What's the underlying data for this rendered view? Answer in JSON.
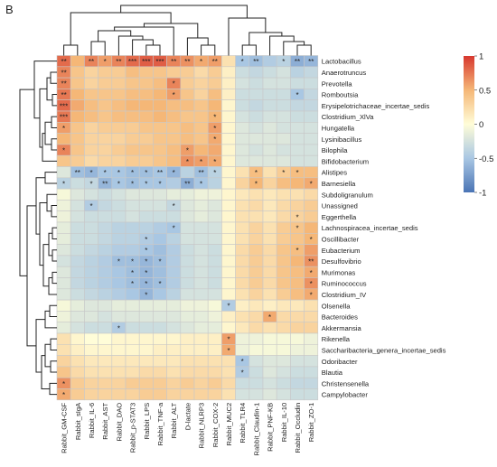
{
  "panel_label": "B",
  "chart_data": {
    "type": "heatmap",
    "title": "",
    "rows": [
      "Lactobacillus",
      "Anaerotruncus",
      "Prevotella",
      "Romboutsia",
      "Erysipelotrichaceae_incertae_sedis",
      "Clostridium_XlVa",
      "Hungatella",
      "Lysinibacillus",
      "Bilophila",
      "Bifidobacterium",
      "Alistipes",
      "Barnesiella",
      "Subdoligranulum",
      "Unassigned",
      "Eggerthella",
      "Lachnospiracea_incertae_sedis",
      "Oscillibacter",
      "Eubacterium",
      "Desulfovibrio",
      "Murimonas",
      "Ruminococcus",
      "Clostridium_IV",
      "Olsenella",
      "Bacteroides",
      "Akkermansia",
      "Rikenella",
      "Saccharibacteria_genera_incertae_sedis",
      "Odoribacter",
      "Blautia",
      "Christensenella",
      "Campylobacter"
    ],
    "columns": [
      "Rabbit_GM-CSF",
      "Rabbit_sIgA",
      "Rabbit_IL-6",
      "Rabbit_AST",
      "Rabbit_DAO",
      "Rabbit_p-STAT3",
      "Rabbit_LPS",
      "Rabbit_TNF-a",
      "Rabbit_ALT",
      "D-lactate",
      "Rabbit_NLRP3",
      "Rabbit_COX-2",
      "Rabbit_MUC2",
      "Rabbit_TLR4",
      "Rabbit_Claudin-1",
      "Rabbit_PNF-KB",
      "Rabbit_IL-10",
      "Rabbit_Occludin",
      "Rabbit_ZO-1"
    ],
    "values": [
      [
        0.8,
        0.5,
        0.7,
        0.6,
        0.7,
        0.8,
        0.85,
        0.85,
        0.7,
        0.65,
        0.55,
        0.6,
        0.2,
        -0.5,
        -0.55,
        -0.45,
        -0.4,
        -0.65,
        -0.6
      ],
      [
        0.7,
        0.4,
        0.3,
        0.35,
        0.35,
        0.45,
        0.4,
        0.4,
        0.35,
        0.35,
        0.25,
        0.35,
        0.1,
        -0.3,
        -0.35,
        -0.3,
        -0.25,
        -0.4,
        -0.35
      ],
      [
        0.7,
        0.4,
        0.3,
        0.35,
        0.35,
        0.4,
        0.4,
        0.45,
        0.7,
        0.35,
        0.3,
        0.35,
        0.1,
        -0.25,
        -0.3,
        -0.25,
        -0.25,
        -0.3,
        -0.3
      ],
      [
        0.75,
        0.5,
        0.4,
        0.4,
        0.4,
        0.45,
        0.45,
        0.5,
        0.6,
        0.4,
        0.3,
        0.45,
        0.1,
        -0.3,
        -0.3,
        -0.3,
        -0.3,
        -0.5,
        -0.35
      ],
      [
        0.8,
        0.55,
        0.45,
        0.4,
        0.45,
        0.5,
        0.5,
        0.5,
        0.45,
        0.45,
        0.4,
        0.5,
        0.05,
        -0.3,
        -0.35,
        -0.3,
        -0.3,
        -0.35,
        -0.35
      ],
      [
        0.75,
        0.5,
        0.45,
        0.4,
        0.45,
        0.45,
        0.45,
        0.5,
        0.45,
        0.4,
        0.4,
        0.5,
        0.05,
        -0.25,
        -0.3,
        -0.25,
        -0.25,
        -0.3,
        -0.3
      ],
      [
        0.6,
        0.4,
        0.3,
        0.35,
        0.35,
        0.35,
        0.4,
        0.4,
        0.4,
        0.45,
        0.4,
        0.6,
        0.05,
        -0.2,
        -0.25,
        -0.2,
        -0.25,
        -0.25,
        -0.25
      ],
      [
        0.5,
        0.4,
        0.3,
        0.3,
        0.3,
        0.35,
        0.35,
        0.4,
        0.4,
        0.45,
        0.4,
        0.55,
        0.05,
        -0.2,
        -0.2,
        -0.2,
        -0.2,
        -0.25,
        -0.25
      ],
      [
        0.7,
        0.4,
        0.3,
        0.3,
        0.35,
        0.4,
        0.4,
        0.4,
        0.45,
        0.6,
        0.5,
        0.55,
        0.05,
        -0.2,
        -0.25,
        -0.2,
        -0.25,
        -0.25,
        -0.25
      ],
      [
        0.4,
        0.35,
        0.25,
        0.3,
        0.3,
        0.35,
        0.35,
        0.4,
        0.45,
        0.65,
        0.6,
        0.55,
        0.05,
        -0.2,
        -0.2,
        -0.2,
        -0.2,
        -0.25,
        -0.25
      ],
      [
        -0.2,
        -0.55,
        -0.6,
        -0.5,
        -0.5,
        -0.55,
        -0.55,
        -0.5,
        -0.6,
        -0.4,
        -0.55,
        -0.4,
        0.05,
        0.2,
        0.45,
        0.2,
        0.35,
        0.45,
        0.45
      ],
      [
        -0.4,
        -0.3,
        -0.35,
        -0.6,
        -0.5,
        -0.55,
        -0.5,
        -0.5,
        -0.45,
        -0.65,
        -0.5,
        -0.4,
        0.05,
        0.3,
        0.5,
        0.3,
        0.45,
        0.5,
        0.55
      ],
      [
        -0.05,
        -0.2,
        -0.25,
        -0.3,
        -0.25,
        -0.2,
        -0.2,
        -0.2,
        -0.15,
        -0.15,
        -0.1,
        -0.1,
        0.05,
        0.15,
        0.2,
        0.15,
        0.2,
        0.2,
        0.25
      ],
      [
        -0.1,
        -0.25,
        -0.45,
        -0.35,
        -0.3,
        -0.25,
        -0.25,
        -0.25,
        -0.35,
        -0.2,
        -0.15,
        -0.2,
        0.05,
        0.2,
        0.25,
        0.15,
        0.25,
        0.3,
        0.35
      ],
      [
        -0.1,
        -0.25,
        -0.3,
        -0.3,
        -0.3,
        -0.25,
        -0.3,
        -0.3,
        -0.3,
        -0.2,
        -0.15,
        -0.2,
        0.05,
        0.2,
        0.2,
        0.15,
        0.25,
        0.3,
        0.35
      ],
      [
        -0.15,
        -0.3,
        -0.3,
        -0.35,
        -0.4,
        -0.4,
        -0.4,
        -0.45,
        -0.5,
        -0.25,
        -0.25,
        -0.25,
        0.05,
        0.2,
        0.3,
        0.2,
        0.35,
        0.4,
        0.5
      ],
      [
        -0.15,
        -0.3,
        -0.3,
        -0.35,
        -0.4,
        -0.4,
        -0.45,
        -0.5,
        -0.4,
        -0.25,
        -0.25,
        -0.25,
        0.05,
        0.2,
        0.3,
        0.2,
        0.35,
        0.4,
        0.5
      ],
      [
        -0.2,
        -0.3,
        -0.35,
        -0.4,
        -0.45,
        -0.45,
        -0.5,
        -0.55,
        -0.45,
        -0.3,
        -0.25,
        -0.3,
        0.05,
        0.25,
        0.35,
        0.25,
        0.4,
        0.45,
        0.6
      ],
      [
        -0.25,
        -0.35,
        -0.4,
        -0.45,
        -0.55,
        -0.55,
        -0.6,
        -0.55,
        -0.45,
        -0.3,
        -0.25,
        -0.3,
        0.05,
        0.25,
        0.35,
        0.25,
        0.4,
        0.5,
        0.65
      ],
      [
        -0.2,
        -0.35,
        -0.4,
        -0.45,
        -0.5,
        -0.55,
        -0.6,
        -0.55,
        -0.45,
        -0.3,
        -0.25,
        -0.3,
        0.05,
        0.25,
        0.35,
        0.25,
        0.4,
        0.45,
        0.55
      ],
      [
        -0.2,
        -0.35,
        -0.4,
        -0.45,
        -0.5,
        -0.55,
        -0.6,
        -0.55,
        -0.45,
        -0.3,
        -0.25,
        -0.3,
        0.05,
        0.25,
        0.35,
        0.25,
        0.4,
        0.45,
        0.65
      ],
      [
        -0.2,
        -0.3,
        -0.35,
        -0.4,
        -0.45,
        -0.5,
        -0.6,
        -0.5,
        -0.4,
        -0.25,
        -0.25,
        -0.25,
        0.05,
        0.2,
        0.3,
        0.2,
        0.35,
        0.45,
        0.55
      ],
      [
        -0.05,
        -0.15,
        -0.2,
        -0.2,
        -0.15,
        -0.15,
        -0.15,
        -0.15,
        -0.15,
        -0.1,
        -0.1,
        -0.05,
        -0.45,
        0.1,
        0.15,
        0.1,
        0.15,
        0.15,
        0.2
      ],
      [
        -0.1,
        -0.2,
        -0.2,
        -0.25,
        -0.2,
        -0.2,
        -0.2,
        -0.2,
        -0.2,
        -0.15,
        -0.15,
        -0.1,
        0.1,
        0.2,
        0.25,
        0.55,
        0.25,
        0.25,
        0.25
      ],
      [
        -0.15,
        -0.25,
        -0.3,
        -0.3,
        -0.45,
        -0.3,
        -0.3,
        -0.3,
        -0.25,
        -0.2,
        -0.15,
        -0.15,
        0.05,
        0.15,
        0.25,
        0.2,
        0.25,
        0.3,
        0.3
      ],
      [
        0.2,
        0.05,
        0.0,
        0.0,
        0.05,
        0.05,
        0.05,
        0.05,
        0.05,
        0.1,
        0.1,
        0.1,
        0.6,
        -0.1,
        -0.1,
        -0.05,
        -0.05,
        -0.05,
        -0.1
      ],
      [
        0.2,
        0.1,
        0.05,
        0.05,
        0.05,
        0.05,
        0.05,
        0.1,
        0.1,
        0.1,
        0.1,
        0.1,
        0.55,
        -0.1,
        -0.05,
        -0.05,
        -0.05,
        -0.1,
        -0.1
      ],
      [
        0.3,
        0.2,
        0.15,
        0.15,
        0.15,
        0.15,
        0.15,
        0.15,
        0.15,
        0.2,
        0.2,
        0.2,
        0.2,
        -0.5,
        -0.25,
        -0.2,
        -0.2,
        -0.25,
        -0.25
      ],
      [
        0.4,
        0.25,
        0.2,
        0.2,
        0.2,
        0.2,
        0.25,
        0.25,
        0.2,
        0.25,
        0.25,
        0.25,
        0.2,
        -0.45,
        -0.3,
        -0.2,
        -0.25,
        -0.3,
        -0.3
      ],
      [
        0.65,
        0.35,
        0.3,
        0.3,
        0.3,
        0.35,
        0.35,
        0.35,
        0.3,
        0.35,
        0.3,
        0.35,
        0.25,
        -0.3,
        -0.3,
        -0.25,
        -0.3,
        -0.35,
        -0.35
      ],
      [
        0.55,
        0.35,
        0.3,
        0.3,
        0.3,
        0.3,
        0.35,
        0.35,
        0.3,
        0.3,
        0.3,
        0.3,
        0.2,
        -0.25,
        -0.25,
        -0.2,
        -0.25,
        -0.3,
        -0.3
      ]
    ],
    "stars": [
      [
        "**",
        "",
        "**",
        "*",
        "**",
        "***",
        "***",
        "***",
        "**",
        "**",
        "*",
        "**",
        "",
        "*",
        "**",
        "",
        "*",
        "**",
        "**"
      ],
      [
        "**",
        "",
        "",
        "",
        "",
        "",
        "",
        "",
        "",
        "",
        "",
        "",
        "",
        "",
        "",
        "",
        "",
        "",
        ""
      ],
      [
        "**",
        "",
        "",
        "",
        "",
        "",
        "",
        "",
        "*",
        "",
        "",
        "",
        "",
        "",
        "",
        "",
        "",
        "",
        ""
      ],
      [
        "**",
        "",
        "",
        "",
        "",
        "",
        "",
        "",
        "*",
        "",
        "",
        "",
        "",
        "",
        "",
        "",
        "",
        "*",
        ""
      ],
      [
        "***",
        "",
        "",
        "",
        "",
        "",
        "",
        "",
        "",
        "",
        "",
        "",
        "",
        "",
        "",
        "",
        "",
        "",
        ""
      ],
      [
        "***",
        "",
        "",
        "",
        "",
        "",
        "",
        "",
        "",
        "",
        "",
        "*",
        "",
        "",
        "",
        "",
        "",
        "",
        ""
      ],
      [
        "*",
        "",
        "",
        "",
        "",
        "",
        "",
        "",
        "",
        "",
        "",
        "*",
        "",
        "",
        "",
        "",
        "",
        "",
        ""
      ],
      [
        "",
        "",
        "",
        "",
        "",
        "",
        "",
        "",
        "",
        "",
        "",
        "*",
        "",
        "",
        "",
        "",
        "",
        "",
        ""
      ],
      [
        "*",
        "",
        "",
        "",
        "",
        "",
        "",
        "",
        "",
        "*",
        "",
        "",
        "",
        "",
        "",
        "",
        "",
        "",
        ""
      ],
      [
        "",
        "",
        "",
        "",
        "",
        "",
        "",
        "",
        "",
        "*",
        "*",
        "*",
        "",
        "",
        "",
        "",
        "",
        "",
        ""
      ],
      [
        "",
        "**",
        "*",
        "*",
        "*",
        "*",
        "*",
        "**",
        "*",
        "",
        "**",
        "*",
        "",
        "",
        "*",
        "",
        "*",
        "*",
        ""
      ],
      [
        "*",
        "",
        "*",
        "**",
        "*",
        "*",
        "*",
        "*",
        "",
        "**",
        "*",
        "",
        "",
        "",
        "*",
        "",
        "",
        "",
        "*"
      ],
      [
        "",
        "",
        "",
        "",
        "",
        "",
        "",
        "",
        "",
        "",
        "",
        "",
        "",
        "",
        "",
        "",
        "",
        "",
        ""
      ],
      [
        "",
        "",
        "*",
        "",
        "",
        "",
        "",
        "",
        "*",
        "",
        "",
        "",
        "",
        "",
        "",
        "",
        "",
        "",
        ""
      ],
      [
        "",
        "",
        "",
        "",
        "",
        "",
        "",
        "",
        "",
        "",
        "",
        "",
        "",
        "",
        "",
        "",
        "",
        "*",
        ""
      ],
      [
        "",
        "",
        "",
        "",
        "",
        "",
        "",
        "",
        "*",
        "",
        "",
        "",
        "",
        "",
        "",
        "",
        "",
        "*",
        ""
      ],
      [
        "",
        "",
        "",
        "",
        "",
        "",
        "*",
        "",
        "",
        "",
        "",
        "",
        "",
        "",
        "",
        "",
        "",
        "",
        "*"
      ],
      [
        "",
        "",
        "",
        "",
        "",
        "",
        "*",
        "",
        "",
        "",
        "",
        "",
        "",
        "",
        "",
        "",
        "",
        "*",
        ""
      ],
      [
        "",
        "",
        "",
        "",
        "*",
        "*",
        "*",
        "*",
        "",
        "",
        "",
        "",
        "",
        "",
        "",
        "",
        "",
        "",
        "**"
      ],
      [
        "",
        "",
        "",
        "",
        "",
        "*",
        "*",
        "",
        "",
        "",
        "",
        "",
        "",
        "",
        "",
        "",
        "",
        "",
        "*"
      ],
      [
        "",
        "",
        "",
        "",
        "",
        "*",
        "*",
        "*",
        "",
        "",
        "",
        "",
        "",
        "",
        "",
        "",
        "",
        "",
        "*"
      ],
      [
        "",
        "",
        "",
        "",
        "",
        "",
        "*",
        "",
        "",
        "",
        "",
        "",
        "",
        "",
        "",
        "",
        "",
        "",
        "*"
      ],
      [
        "",
        "",
        "",
        "",
        "",
        "",
        "",
        "",
        "",
        "",
        "",
        "",
        "*",
        "",
        "",
        "",
        "",
        "",
        ""
      ],
      [
        "",
        "",
        "",
        "",
        "",
        "",
        "",
        "",
        "",
        "",
        "",
        "",
        "",
        "",
        "",
        "*",
        "",
        "",
        ""
      ],
      [
        "",
        "",
        "",
        "",
        "*",
        "",
        "",
        "",
        "",
        "",
        "",
        "",
        "",
        "",
        "",
        "",
        "",
        "",
        ""
      ],
      [
        "",
        "",
        "",
        "",
        "",
        "",
        "",
        "",
        "",
        "",
        "",
        "",
        "*",
        "",
        "",
        "",
        "",
        "",
        ""
      ],
      [
        "",
        "",
        "",
        "",
        "",
        "",
        "",
        "",
        "",
        "",
        "",
        "",
        "*",
        "",
        "",
        "",
        "",
        "",
        ""
      ],
      [
        "",
        "",
        "",
        "",
        "",
        "",
        "",
        "",
        "",
        "",
        "",
        "",
        "",
        "*",
        "",
        "",
        "",
        "",
        ""
      ],
      [
        "",
        "",
        "",
        "",
        "",
        "",
        "",
        "",
        "",
        "",
        "",
        "",
        "",
        "*",
        "",
        "",
        "",
        "",
        ""
      ],
      [
        "*",
        "",
        "",
        "",
        "",
        "",
        "",
        "",
        "",
        "",
        "",
        "",
        "",
        "",
        "",
        "",
        "",
        "",
        ""
      ],
      [
        "*",
        "",
        "",
        "",
        "",
        "",
        "",
        "",
        "",
        "",
        "",
        "",
        "",
        "",
        "",
        "",
        "",
        "",
        ""
      ]
    ],
    "color_scale": {
      "min": -1,
      "max": 1,
      "stops": [
        {
          "value": -1,
          "color": "#4a74b5"
        },
        {
          "value": -0.5,
          "color": "#a9c7e3"
        },
        {
          "value": 0,
          "color": "#fffdd8"
        },
        {
          "value": 0.5,
          "color": "#f5b777"
        },
        {
          "value": 1,
          "color": "#d7382f"
        }
      ],
      "ticks": [
        "1",
        "0.5",
        "0",
        "-0.5",
        "-1"
      ]
    }
  }
}
